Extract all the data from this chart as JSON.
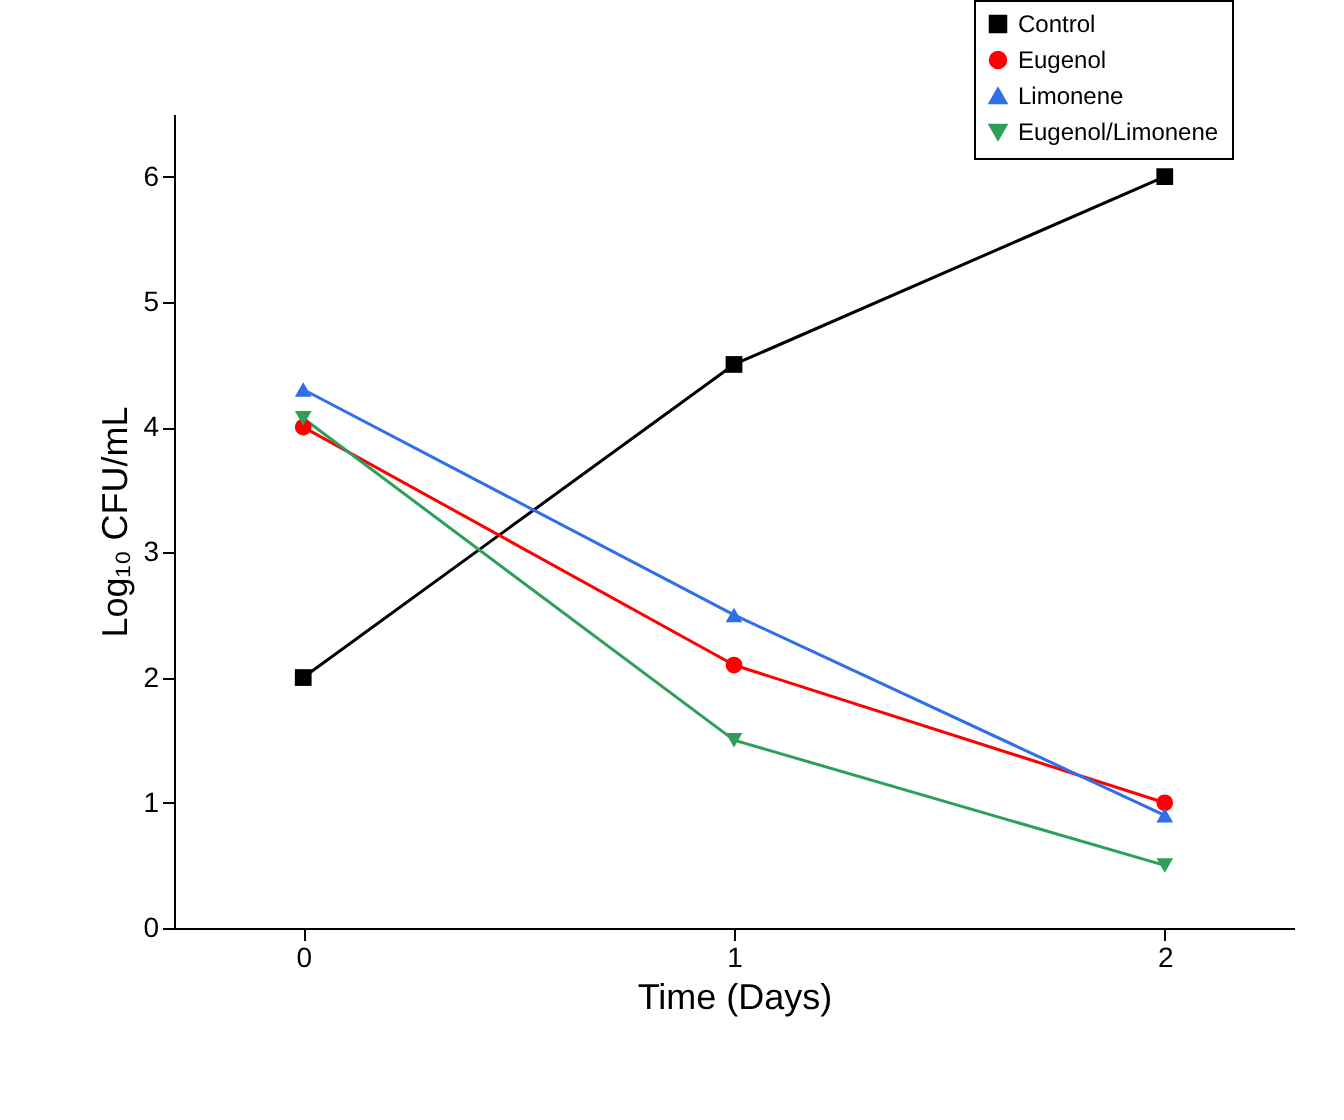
{
  "chart_data": {
    "type": "line",
    "xlabel": "Time (Days)",
    "ylabel": "Log₁₀ CFU/mL",
    "x": [
      0,
      1,
      2
    ],
    "xlim": [
      -0.3,
      2.3
    ],
    "xticks": [
      0,
      1,
      2
    ],
    "ylim": [
      0,
      6.5
    ],
    "yticks": [
      0,
      1,
      2,
      3,
      4,
      5,
      6
    ],
    "series": [
      {
        "name": "Control",
        "color": "#000000",
        "marker": "square",
        "values": [
          2,
          4.5,
          6
        ]
      },
      {
        "name": "Eugenol",
        "color": "#ff0000",
        "marker": "circle",
        "values": [
          4,
          2.1,
          1.0
        ]
      },
      {
        "name": "Limonene",
        "color": "#2f6fe8",
        "marker": "triangle",
        "values": [
          4.3,
          2.5,
          0.9
        ]
      },
      {
        "name": "Eugenol/Limonene",
        "color": "#2e9e5b",
        "marker": "triangle-down",
        "values": [
          4.07,
          1.5,
          0.5
        ]
      }
    ],
    "legend": "top right",
    "grid": false,
    "line_style": "solid"
  }
}
